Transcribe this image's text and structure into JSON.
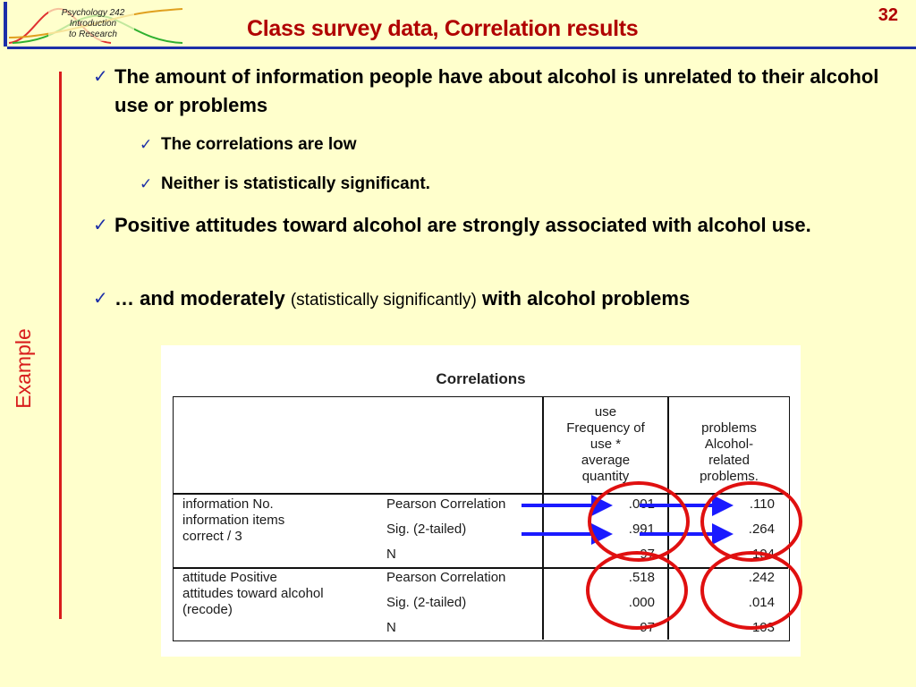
{
  "header": {
    "logo_lines": [
      "Psychology 242",
      "Introduction",
      "to Research"
    ],
    "title": "Class survey data, Correlation results",
    "slide_number": "32"
  },
  "side_label": "Example",
  "bullets": [
    {
      "level": 1,
      "text": "The amount of information people have about alcohol is unrelated to their alcohol use or problems"
    },
    {
      "level": 2,
      "text": "The correlations are low"
    },
    {
      "level": 2,
      "text": "Neither is statistically significant."
    },
    {
      "level": 1,
      "text": "Positive attitudes toward alcohol are strongly associated with alcohol use."
    },
    {
      "level": 1,
      "text_bold_1": "… and moderately",
      "text_normal": "(statistically significantly)",
      "text_bold_2": "with alcohol problems"
    }
  ],
  "table": {
    "caption": "Correlations",
    "col_headers": [
      [
        "use",
        "Frequency of",
        "use *",
        "average",
        "quantity"
      ],
      [
        "problems",
        "Alcohol-",
        "related",
        "problems."
      ]
    ],
    "row_groups": [
      {
        "label": [
          "information No.",
          "information items",
          "correct / 3"
        ],
        "stats": [
          "Pearson Correlation",
          "Sig. (2-tailed)",
          "N"
        ],
        "col1": [
          ".001",
          ".991",
          "97"
        ],
        "col2": [
          ".110",
          ".264",
          "104"
        ]
      },
      {
        "label": [
          "attitude Positive",
          "attitudes toward alcohol",
          "(recode)"
        ],
        "stats": [
          "Pearson Correlation",
          "Sig. (2-tailed)",
          "N"
        ],
        "col1": [
          ".518",
          ".000",
          "97"
        ],
        "col2": [
          ".242",
          ".014",
          "103"
        ]
      }
    ]
  },
  "colors": {
    "background": "#ffffcc",
    "title": "#b00000",
    "accent_blue": "#1c2fa8",
    "accent_red": "#d81c1c",
    "arrow_blue": "#1a1aff",
    "circle_red": "#e01010"
  }
}
